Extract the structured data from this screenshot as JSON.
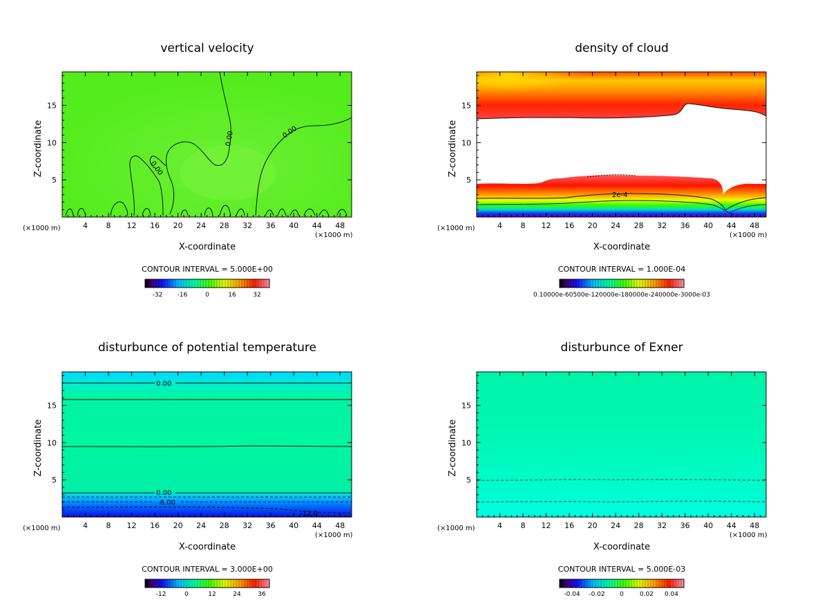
{
  "chart_data": [
    {
      "type": "heatmap",
      "title": "vertical velocity",
      "xlabel": "X-coordinate",
      "ylabel": "Z-coordinate",
      "x_unit": "(×1000 m)",
      "xlim": [
        0,
        50
      ],
      "ylim": [
        0,
        19.5
      ],
      "x_ticks": [
        4,
        8,
        12,
        16,
        20,
        24,
        28,
        32,
        36,
        40,
        44,
        48
      ],
      "y_ticks": [
        5,
        10,
        15
      ],
      "contour_interval_label": "CONTOUR INTERVAL = 5.000E+00",
      "colorbar_ticks": [
        "-32",
        "-16",
        "0",
        "16",
        "32"
      ],
      "contour_labels": [
        "0.00",
        "0.00",
        "0.00"
      ]
    },
    {
      "type": "heatmap",
      "title": "density of cloud",
      "xlabel": "X-coordinate",
      "ylabel": "Z-coordinate",
      "x_unit": "(×1000 m)",
      "xlim": [
        0,
        50
      ],
      "ylim": [
        0,
        19.5
      ],
      "x_ticks": [
        4,
        8,
        12,
        16,
        20,
        24,
        28,
        32,
        36,
        40,
        44,
        48
      ],
      "y_ticks": [
        5,
        10,
        15
      ],
      "contour_interval_label": "CONTOUR INTERVAL = 1.000E-04",
      "colorbar_ticks": [
        "0.10000e-60500e-120000e-180000e-240000e-3000e-03"
      ],
      "contour_labels": [
        "2e-4"
      ]
    },
    {
      "type": "heatmap",
      "title": "disturbunce of potential temperature",
      "xlabel": "X-coordinate",
      "ylabel": "Z-coordinate",
      "x_unit": "(×1000 m)",
      "xlim": [
        0,
        50
      ],
      "ylim": [
        0,
        19.5
      ],
      "x_ticks": [
        4,
        8,
        12,
        16,
        20,
        24,
        28,
        32,
        36,
        40,
        44,
        48
      ],
      "y_ticks": [
        5,
        10,
        15
      ],
      "contour_interval_label": "CONTOUR INTERVAL = 3.000E+00",
      "colorbar_ticks": [
        "-12",
        "0",
        "12",
        "24",
        "36"
      ],
      "contour_labels": [
        "0.00",
        "0.00",
        "-6.00",
        "-12.0"
      ]
    },
    {
      "type": "heatmap",
      "title": "disturbunce of Exner",
      "xlabel": "X-coordinate",
      "ylabel": "Z-coordinate",
      "x_unit": "(×1000 m)",
      "xlim": [
        0,
        50
      ],
      "ylim": [
        0,
        19.5
      ],
      "x_ticks": [
        4,
        8,
        12,
        16,
        20,
        24,
        28,
        32,
        36,
        40,
        44,
        48
      ],
      "y_ticks": [
        5,
        10,
        15
      ],
      "contour_interval_label": "CONTOUR INTERVAL = 5.000E-03",
      "colorbar_ticks": [
        "-0.04",
        "-0.02",
        "0",
        "0.02",
        "0.04"
      ],
      "contour_labels": []
    }
  ]
}
